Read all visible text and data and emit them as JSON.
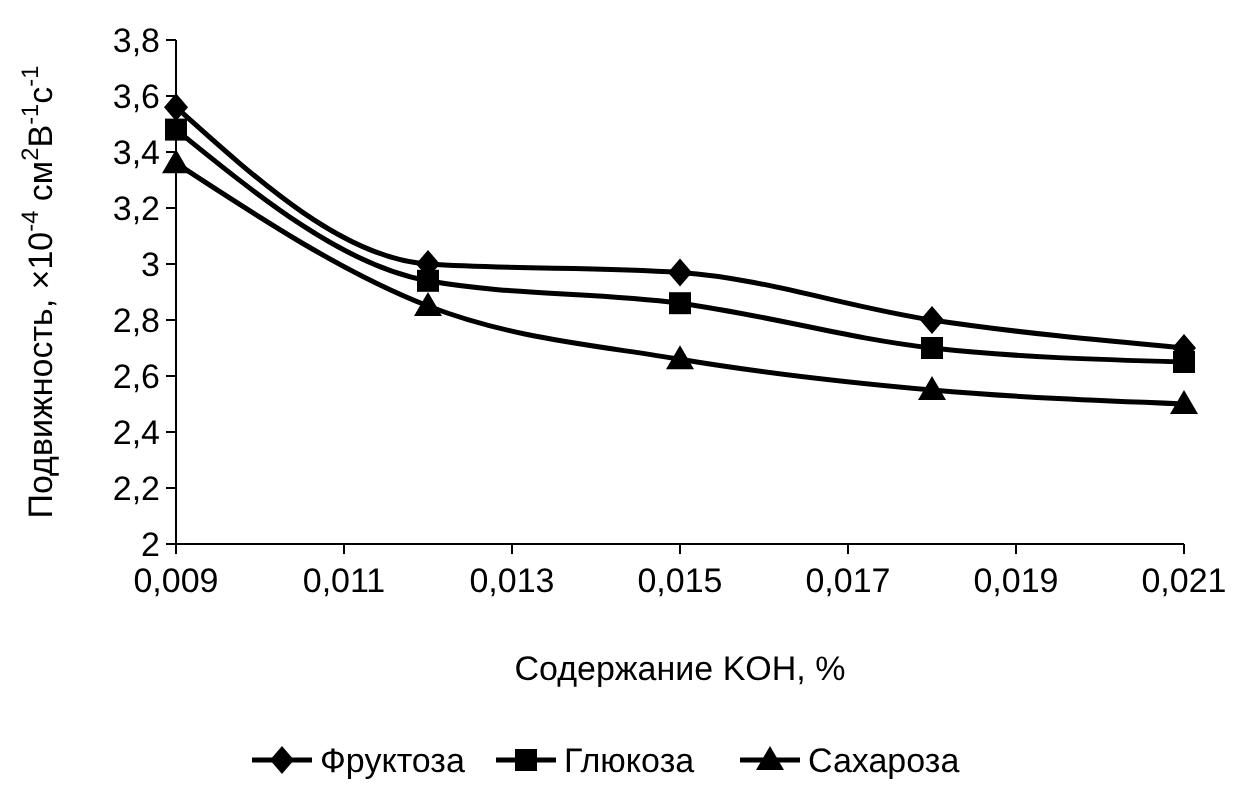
{
  "chart_data": {
    "type": "line",
    "xlabel": "Содержание KOH, %",
    "ylabel": "Подвижность, ×10$^{-4}$ см$^{2}$В$^{-1}$с$^{-1}$",
    "x": [
      0.009,
      0.012,
      0.015,
      0.018,
      0.021
    ],
    "series": [
      {
        "name": "Фруктоза",
        "color": "#000000",
        "marker": "diamond",
        "values": [
          3.56,
          3.0,
          2.97,
          2.8,
          2.7
        ]
      },
      {
        "name": "Глюкоза",
        "color": "#000000",
        "marker": "square",
        "values": [
          3.48,
          2.94,
          2.86,
          2.7,
          2.65
        ]
      },
      {
        "name": "Сахароза",
        "color": "#000000",
        "marker": "triangle",
        "values": [
          3.36,
          2.85,
          2.66,
          2.55,
          2.5
        ]
      }
    ],
    "xlim": [
      0.009,
      0.021
    ],
    "xticks": [
      {
        "value": 0.009,
        "label": "0,009"
      },
      {
        "value": 0.011,
        "label": "0,011"
      },
      {
        "value": 0.013,
        "label": "0,013"
      },
      {
        "value": 0.015,
        "label": "0,015"
      },
      {
        "value": 0.017,
        "label": "0,017"
      },
      {
        "value": 0.019,
        "label": "0,019"
      },
      {
        "value": 0.021,
        "label": "0,021"
      }
    ],
    "ylim": [
      2,
      3.8
    ],
    "yticks": [
      2,
      {
        "value": 2.2,
        "label": "2,2"
      },
      {
        "value": 2.4,
        "label": "2,4"
      },
      {
        "value": 2.6,
        "label": "2,6"
      },
      {
        "value": 2.8,
        "label": "2,8"
      },
      3,
      {
        "value": 3.2,
        "label": "3,2"
      },
      {
        "value": 3.4,
        "label": "3,4"
      },
      {
        "value": 3.6,
        "label": "3,6"
      },
      {
        "value": 3.8,
        "label": "3,8"
      }
    ],
    "grid": false,
    "legend": "bottom",
    "line_style": "solid"
  }
}
